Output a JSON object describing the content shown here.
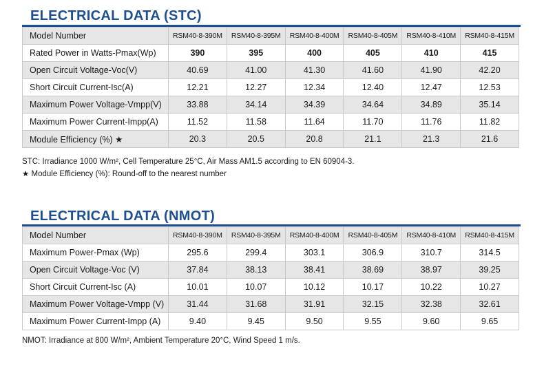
{
  "stc": {
    "title": "ELECTRICAL DATA (STC)",
    "rows": [
      {
        "label": "Model Number",
        "values": [
          "RSM40-8-390M",
          "RSM40-8-395M",
          "RSM40-8-400M",
          "RSM40-8-405M",
          "RSM40-8-410M",
          "RSM40-8-415M"
        ]
      },
      {
        "label": "Rated Power in Watts-Pmax(Wp)",
        "values": [
          "390",
          "395",
          "400",
          "405",
          "410",
          "415"
        ]
      },
      {
        "label": "Open Circuit Voltage-Voc(V)",
        "values": [
          "40.69",
          "41.00",
          "41.30",
          "41.60",
          "41.90",
          "42.20"
        ]
      },
      {
        "label": "Short Circuit Current-Isc(A)",
        "values": [
          "12.21",
          "12.27",
          "12.34",
          "12.40",
          "12.47",
          "12.53"
        ]
      },
      {
        "label": "Maximum Power Voltage-Vmpp(V)",
        "values": [
          "33.88",
          "34.14",
          "34.39",
          "34.64",
          "34.89",
          "35.14"
        ]
      },
      {
        "label": "Maximum Power Current-Impp(A)",
        "values": [
          "11.52",
          "11.58",
          "11.64",
          "11.70",
          "11.76",
          "11.82"
        ]
      },
      {
        "label": "Module Efficiency (%) ★",
        "values": [
          "20.3",
          "20.5",
          "20.8",
          "21.1",
          "21.3",
          "21.6"
        ]
      }
    ],
    "note1": "STC: Irradiance 1000 W/m², Cell Temperature 25°C, Air Mass AM1.5 according to EN 60904-3.",
    "note2": "★ Module Efficiency (%): Round-off to the nearest number"
  },
  "nmot": {
    "title": "ELECTRICAL DATA (NMOT)",
    "rows": [
      {
        "label": "Model Number",
        "values": [
          "RSM40-8-390M",
          "RSM40-8-395M",
          "RSM40-8-400M",
          "RSM40-8-405M",
          "RSM40-8-410M",
          "RSM40-8-415M"
        ]
      },
      {
        "label": "Maximum Power-Pmax (Wp)",
        "values": [
          "295.6",
          "299.4",
          "303.1",
          "306.9",
          "310.7",
          "314.5"
        ]
      },
      {
        "label": "Open Circuit Voltage-Voc (V)",
        "values": [
          "37.84",
          "38.13",
          "38.41",
          "38.69",
          "38.97",
          "39.25"
        ]
      },
      {
        "label": "Short Circuit Current-Isc (A)",
        "values": [
          "10.01",
          "10.07",
          "10.12",
          "10.17",
          "10.22",
          "10.27"
        ]
      },
      {
        "label": "Maximum Power Voltage-Vmpp (V)",
        "values": [
          "31.44",
          "31.68",
          "31.91",
          "32.15",
          "32.38",
          "32.61"
        ]
      },
      {
        "label": "Maximum Power Current-Impp (A)",
        "values": [
          "9.40",
          "9.45",
          "9.50",
          "9.55",
          "9.60",
          "9.65"
        ]
      }
    ],
    "note1": "NMOT: Irradiance at 800 W/m², Ambient Temperature 20°C, Wind Speed 1 m/s."
  }
}
